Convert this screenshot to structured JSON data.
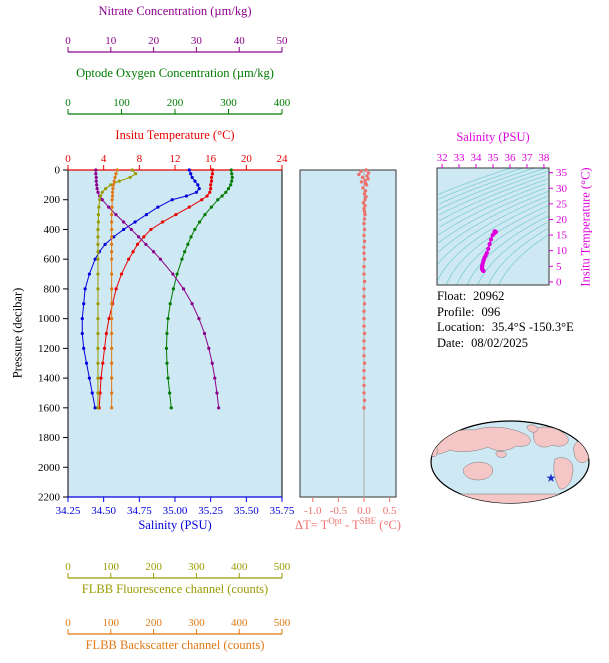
{
  "meta": {
    "float_label": "Float:",
    "float_value": "20962",
    "profile_label": "Profile:",
    "profile_value": "096",
    "location_label": "Location:",
    "location_value": "35.4°S -150.3°E",
    "date_label": "Date:",
    "date_value": "08/02/2025"
  },
  "map": {
    "marker": "★"
  },
  "colors": {
    "plot_bg": "#cfe9f4",
    "nitrate": "#8b008b",
    "oxygen": "#007a00",
    "temp": "#e80000",
    "salinity": "#0000dd",
    "fluor": "#9a9a00",
    "backscatter": "#e07812",
    "pressure": "#000000",
    "delta": "#ef716c",
    "ts": "#dd00dd",
    "ts_border": "#333333",
    "isopycnal": "#7fcfcf",
    "zero_line": "#aaaaaa",
    "land": "#f5c6c6",
    "ocean": "#cfe9f4",
    "star": "#2233cc"
  },
  "chart_data": [
    {
      "id": "main-profile",
      "type": "line",
      "y_axis": {
        "label": "Pressure (decibar)",
        "min": 0,
        "max": 2200,
        "ticks": [
          0,
          200,
          400,
          600,
          800,
          1000,
          1200,
          1400,
          1600,
          1800,
          2000,
          2200
        ]
      },
      "x_axes": [
        {
          "id": "nitrate",
          "slot": "top3",
          "color_key": "nitrate",
          "label": "Nitrate Concentration (µm/kg)",
          "min": 0,
          "max": 50,
          "ticks": [
            0,
            10,
            20,
            30,
            40,
            50
          ]
        },
        {
          "id": "oxygen",
          "slot": "top2",
          "color_key": "oxygen",
          "label": "Optode Oxygen Concentration (µm/kg)",
          "min": 0,
          "max": 400,
          "ticks": [
            0,
            100,
            200,
            300,
            400
          ]
        },
        {
          "id": "temp",
          "slot": "top1",
          "color_key": "temp",
          "label": "Insitu Temperature (°C)",
          "min": 0,
          "max": 24,
          "ticks": [
            0,
            4,
            8,
            12,
            16,
            20,
            24
          ]
        },
        {
          "id": "salinity",
          "slot": "bottom1",
          "color_key": "salinity",
          "label": "Salinity (PSU)",
          "min": 34.25,
          "max": 35.75,
          "ticks": [
            34.25,
            34.5,
            34.75,
            35,
            35.25,
            35.5,
            35.75
          ],
          "tick_labels": [
            "34.25",
            "34.50",
            "34.75",
            "35.00",
            "35.25",
            "35.50",
            "35.75"
          ]
        },
        {
          "id": "fluor",
          "slot": "bottom2",
          "color_key": "fluor",
          "label": "FLBB Fluorescence channel (counts)",
          "min": 0,
          "max": 500,
          "ticks": [
            0,
            100,
            200,
            300,
            400,
            500
          ]
        },
        {
          "id": "backscatter",
          "slot": "bottom3",
          "color_key": "backscatter",
          "label": "FLBB Backscatter channel (counts)",
          "min": 0,
          "max": 500,
          "ticks": [
            0,
            100,
            200,
            300,
            400,
            500
          ]
        }
      ],
      "pressure_levels": [
        0,
        25,
        50,
        75,
        100,
        125,
        150,
        175,
        200,
        250,
        300,
        350,
        400,
        450,
        500,
        550,
        600,
        700,
        800,
        900,
        1000,
        1100,
        1200,
        1300,
        1400,
        1500,
        1600
      ],
      "series": [
        {
          "name": "Insitu Temperature",
          "axis": "temp",
          "values": [
            16.2,
            16.2,
            16.1,
            16.1,
            16.0,
            16.0,
            15.9,
            15.6,
            15.0,
            13.6,
            12.1,
            10.6,
            9.3,
            8.5,
            7.8,
            7.3,
            6.8,
            6.0,
            5.4,
            5.0,
            4.6,
            4.3,
            4.1,
            3.9,
            3.7,
            3.6,
            3.5
          ]
        },
        {
          "name": "Salinity",
          "axis": "salinity",
          "values": [
            35.1,
            35.11,
            35.12,
            35.14,
            35.16,
            35.17,
            35.15,
            35.08,
            34.98,
            34.88,
            34.8,
            34.72,
            34.64,
            34.57,
            34.51,
            34.47,
            34.44,
            34.4,
            34.37,
            34.36,
            34.35,
            34.35,
            34.36,
            34.38,
            34.4,
            34.42,
            34.44
          ]
        },
        {
          "name": "Optode Oxygen",
          "axis": "oxygen",
          "values": [
            305,
            306,
            307,
            306,
            304,
            300,
            295,
            288,
            280,
            268,
            256,
            246,
            237,
            230,
            224,
            218,
            213,
            204,
            197,
            191,
            187,
            185,
            184,
            185,
            187,
            190,
            193
          ]
        },
        {
          "name": "Nitrate",
          "axis": "nitrate",
          "values": [
            6.5,
            6.5,
            6.6,
            6.6,
            6.7,
            6.8,
            7.0,
            7.4,
            8.0,
            9.5,
            11.2,
            13.0,
            14.8,
            16.5,
            18.2,
            20.0,
            21.6,
            24.5,
            27.0,
            29.0,
            30.6,
            31.9,
            32.9,
            33.7,
            34.3,
            34.8,
            35.2
          ]
        },
        {
          "name": "FLBB Fluorescence",
          "axis": "fluor",
          "values": [
            150,
            158,
            145,
            120,
            100,
            88,
            80,
            76,
            74,
            72,
            71,
            71,
            70,
            70,
            70,
            70,
            70,
            70,
            70,
            70,
            70,
            70,
            70,
            70,
            70,
            70,
            70
          ]
        },
        {
          "name": "FLBB Backscatter",
          "axis": "backscatter",
          "values": [
            115,
            112,
            110,
            108,
            106,
            105,
            104,
            104,
            103,
            103,
            102,
            102,
            102,
            102,
            102,
            102,
            102,
            102,
            102,
            102,
            102,
            102,
            102,
            102,
            102,
            102,
            102
          ]
        }
      ]
    },
    {
      "id": "delta-t",
      "type": "scatter",
      "x_axis": {
        "min": -1.25,
        "max": 0.625,
        "ticks": [
          -1.0,
          -0.5,
          0.0,
          0.5
        ],
        "tick_labels": [
          "-1.0",
          "-0.5",
          "0.0",
          "0.5"
        ],
        "title_parts": {
          "p1": "ΔT= T",
          "sup1": "Opt",
          "p2": " - T",
          "sup2": "SBE",
          "p3": " (°C)"
        }
      },
      "zero_line": 0.0,
      "pressure": [
        0,
        10,
        20,
        30,
        40,
        50,
        60,
        70,
        80,
        90,
        100,
        120,
        140,
        160,
        180,
        200,
        220,
        240,
        260,
        280,
        300,
        330,
        360,
        400,
        440,
        480,
        520,
        560,
        600,
        650,
        700,
        750,
        800,
        850,
        900,
        950,
        1000,
        1050,
        1100,
        1150,
        1200,
        1250,
        1300,
        1350,
        1400,
        1450,
        1500,
        1550,
        1600
      ],
      "values": [
        0.04,
        -0.06,
        0.09,
        -0.1,
        0.06,
        -0.03,
        0.08,
        0.02,
        -0.05,
        0.03,
        0.05,
        -0.02,
        0.03,
        0.01,
        0.04,
        0.02,
        -0.01,
        0.02,
        0.0,
        0.01,
        0.02,
        0.01,
        0.0,
        0.01,
        0.0,
        0.01,
        0.0,
        0.0,
        0.01,
        0.0,
        0.0,
        0.01,
        0.0,
        0.0,
        0.01,
        0.0,
        0.0,
        0.0,
        0.01,
        0.0,
        0.0,
        0.0,
        0.01,
        0.0,
        0.0,
        0.0,
        0.0,
        0.01,
        0.0
      ]
    },
    {
      "id": "ts-diagram",
      "type": "scatter",
      "x_axis": {
        "label": "Salinity (PSU)",
        "range_min": 31.7,
        "range_max": 38.3,
        "ticks": [
          32,
          33,
          34,
          35,
          36,
          37,
          38
        ]
      },
      "y_axis": {
        "label": "Insitu Temperature (°C)",
        "range_min": -1,
        "range_max": 36.5,
        "ticks": [
          0,
          5,
          10,
          15,
          20,
          25,
          30,
          35
        ]
      },
      "isopycnal_levels": [
        20,
        20.5,
        21,
        21.5,
        22,
        22.5,
        23,
        23.5,
        24,
        24.5,
        25,
        25.5,
        26,
        26.5,
        27,
        27.5,
        28,
        28.5
      ],
      "points_source": "main-profile salinity vs temperature"
    }
  ]
}
